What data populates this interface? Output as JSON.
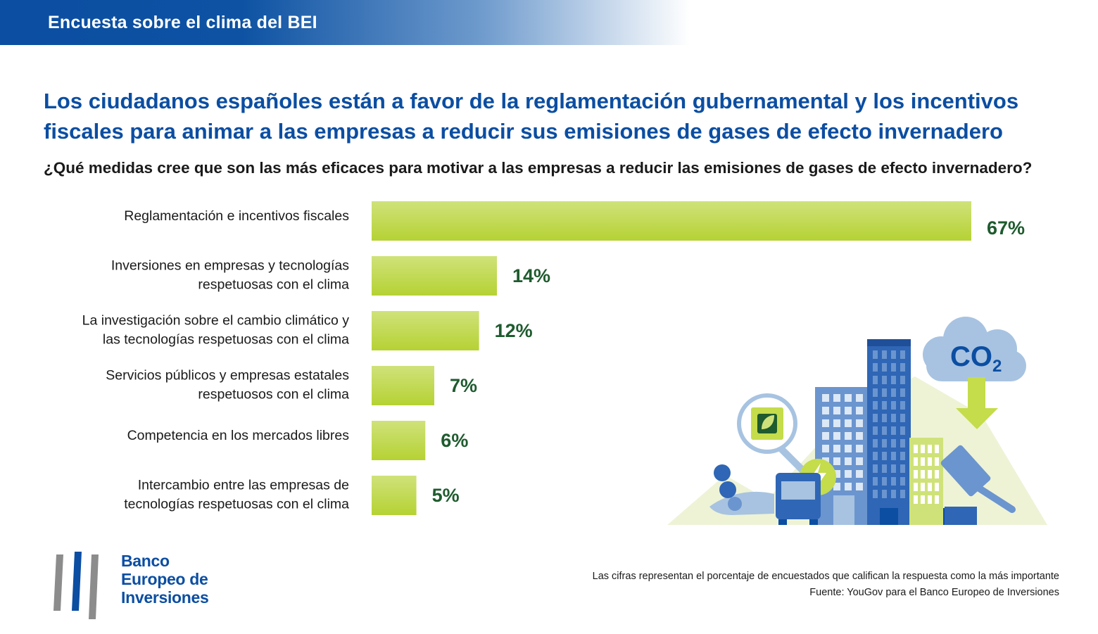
{
  "header": {
    "title": "Encuesta sobre el clima del BEI"
  },
  "headline": {
    "line1": "Los ciudadanos españoles están a favor de la reglamentación gubernamental y los incentivos",
    "line2": "fiscales para animar a las empresas a reducir sus emisiones de gases de efecto invernadero"
  },
  "question": "¿Qué medidas cree que son las más eficaces para motivar a las empresas a reducir las emisiones de gases de efecto invernadero?",
  "chart_data": {
    "type": "bar",
    "orientation": "horizontal",
    "categories": [
      [
        "Reglamentación e incentivos fiscales"
      ],
      [
        "Inversiones en empresas y tecnologías",
        "respetuosas con el clima"
      ],
      [
        "La investigación sobre el cambio climático y",
        "las tecnologías respetuosas con el clima"
      ],
      [
        "Servicios públicos y empresas estatales",
        "respetuosos con el clima"
      ],
      [
        "Competencia en los mercados libres"
      ],
      [
        "Intercambio entre las empresas de",
        "tecnologías respetuosas con el clima"
      ]
    ],
    "values": [
      67,
      14,
      12,
      7,
      6,
      5
    ],
    "value_labels": [
      "67%",
      "14%",
      "12%",
      "7%",
      "6%",
      "5%"
    ],
    "xlim": [
      0,
      67
    ],
    "grid": false,
    "colors": {
      "bar_top": "#cfe27a",
      "bar_bottom": "#b5d233",
      "value_label": "#1e5b2e"
    }
  },
  "illustration": {
    "co2_label": "CO",
    "co2_subscript": "2"
  },
  "logo": {
    "line1": "Banco",
    "line2": "Europeo de",
    "line3": "Inversiones"
  },
  "footnote": {
    "line1": "Las cifras representan el porcentaje de encuestados que califican la respuesta como la más importante",
    "line2": "Fuente: YouGov para el Banco Europeo de Inversiones"
  },
  "colors": {
    "brand_blue": "#0b4ea2",
    "text": "#1a1a1a"
  }
}
